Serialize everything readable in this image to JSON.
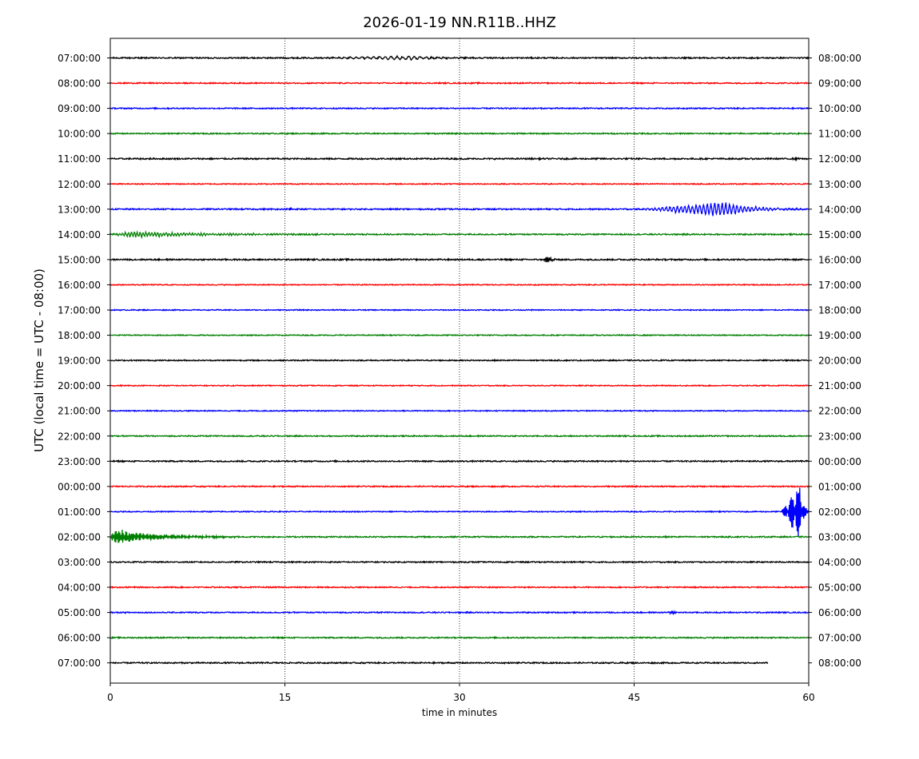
{
  "chart_data": {
    "type": "line",
    "title": "2026-01-19 NN.R11B..HHZ",
    "xlabel": "time in minutes",
    "ylabel": "UTC (local time = UTC - 08:00)",
    "xlim": [
      0,
      60
    ],
    "x_ticks": [
      0,
      15,
      30,
      45,
      60
    ],
    "vertical_gridlines_at": [
      15,
      30,
      45
    ],
    "grid": "dotted vertical",
    "trace_colors": [
      "#000000",
      "#ff0000",
      "#0000ff",
      "#008000"
    ],
    "rows": [
      {
        "left": "07:00:00",
        "right": "08:00:00",
        "color": "#000000",
        "noise": 0.2,
        "events": [
          {
            "start": 17,
            "end": 33,
            "peak": 26,
            "amp": 0.45,
            "period": 0.5
          }
        ],
        "ends_at": 60
      },
      {
        "left": "08:00:00",
        "right": "09:00:00",
        "color": "#ff0000",
        "noise": 0.18,
        "events": [],
        "ends_at": 60
      },
      {
        "left": "09:00:00",
        "right": "10:00:00",
        "color": "#0000ff",
        "noise": 0.18,
        "events": [],
        "ends_at": 60
      },
      {
        "left": "10:00:00",
        "right": "11:00:00",
        "color": "#008000",
        "noise": 0.18,
        "events": [],
        "ends_at": 60
      },
      {
        "left": "11:00:00",
        "right": "12:00:00",
        "color": "#000000",
        "noise": 0.22,
        "events": [
          {
            "start": 58.7,
            "end": 59.2,
            "peak": 58.9,
            "amp": 0.9,
            "period": 0.1
          }
        ],
        "ends_at": 60
      },
      {
        "left": "12:00:00",
        "right": "13:00:00",
        "color": "#ff0000",
        "noise": 0.15,
        "events": [],
        "ends_at": 60
      },
      {
        "left": "13:00:00",
        "right": "14:00:00",
        "color": "#0000ff",
        "noise": 0.2,
        "events": [
          {
            "start": 45,
            "end": 59.5,
            "peak": 52.5,
            "amp": 1.9,
            "period": 0.32
          },
          {
            "start": 15.3,
            "end": 15.7,
            "peak": 15.5,
            "amp": 0.6,
            "period": 0.1
          }
        ],
        "ends_at": 60
      },
      {
        "left": "14:00:00",
        "right": "15:00:00",
        "color": "#008000",
        "noise": 0.2,
        "events": [
          {
            "start": 0,
            "end": 24,
            "peak": 1.5,
            "amp": 0.7,
            "period": 0.25
          }
        ],
        "ends_at": 60
      },
      {
        "left": "15:00:00",
        "right": "16:00:00",
        "color": "#000000",
        "noise": 0.22,
        "events": [
          {
            "start": 37,
            "end": 38.5,
            "peak": 37.6,
            "amp": 0.9,
            "period": 0.12
          }
        ],
        "ends_at": 60
      },
      {
        "left": "16:00:00",
        "right": "17:00:00",
        "color": "#ff0000",
        "noise": 0.15,
        "events": [],
        "ends_at": 60
      },
      {
        "left": "17:00:00",
        "right": "18:00:00",
        "color": "#0000ff",
        "noise": 0.15,
        "events": [],
        "ends_at": 60
      },
      {
        "left": "18:00:00",
        "right": "19:00:00",
        "color": "#008000",
        "noise": 0.15,
        "events": [],
        "ends_at": 60
      },
      {
        "left": "19:00:00",
        "right": "20:00:00",
        "color": "#000000",
        "noise": 0.18,
        "events": [],
        "ends_at": 60
      },
      {
        "left": "20:00:00",
        "right": "21:00:00",
        "color": "#ff0000",
        "noise": 0.15,
        "events": [],
        "ends_at": 60
      },
      {
        "left": "21:00:00",
        "right": "22:00:00",
        "color": "#0000ff",
        "noise": 0.15,
        "events": [],
        "ends_at": 60
      },
      {
        "left": "22:00:00",
        "right": "23:00:00",
        "color": "#008000",
        "noise": 0.18,
        "events": [],
        "ends_at": 60
      },
      {
        "left": "23:00:00",
        "right": "00:00:00",
        "color": "#000000",
        "noise": 0.2,
        "events": [],
        "ends_at": 60
      },
      {
        "left": "00:00:00",
        "right": "01:00:00",
        "color": "#ff0000",
        "noise": 0.18,
        "events": [],
        "ends_at": 60
      },
      {
        "left": "01:00:00",
        "right": "02:00:00",
        "color": "#0000ff",
        "noise": 0.15,
        "events": [
          {
            "start": 57.5,
            "end": 60,
            "peak": 59.3,
            "amp": 8.5,
            "period": 0.08
          }
        ],
        "ends_at": 60
      },
      {
        "left": "02:00:00",
        "right": "03:00:00",
        "color": "#008000",
        "noise": 0.2,
        "events": [
          {
            "start": 0,
            "end": 11,
            "peak": 0.3,
            "amp": 2.2,
            "period": 0.1
          }
        ],
        "ends_at": 60
      },
      {
        "left": "03:00:00",
        "right": "04:00:00",
        "color": "#000000",
        "noise": 0.18,
        "events": [],
        "ends_at": 60
      },
      {
        "left": "04:00:00",
        "right": "05:00:00",
        "color": "#ff0000",
        "noise": 0.18,
        "events": [],
        "ends_at": 60
      },
      {
        "left": "05:00:00",
        "right": "06:00:00",
        "color": "#0000ff",
        "noise": 0.18,
        "events": [
          {
            "start": 47.8,
            "end": 48.8,
            "peak": 48.3,
            "amp": 0.6,
            "period": 0.12
          }
        ],
        "ends_at": 60
      },
      {
        "left": "06:00:00",
        "right": "07:00:00",
        "color": "#008000",
        "noise": 0.18,
        "events": [],
        "ends_at": 60
      },
      {
        "left": "07:00:00",
        "right": "08:00:00",
        "color": "#000000",
        "noise": 0.2,
        "events": [],
        "ends_at": 56.5
      }
    ]
  }
}
